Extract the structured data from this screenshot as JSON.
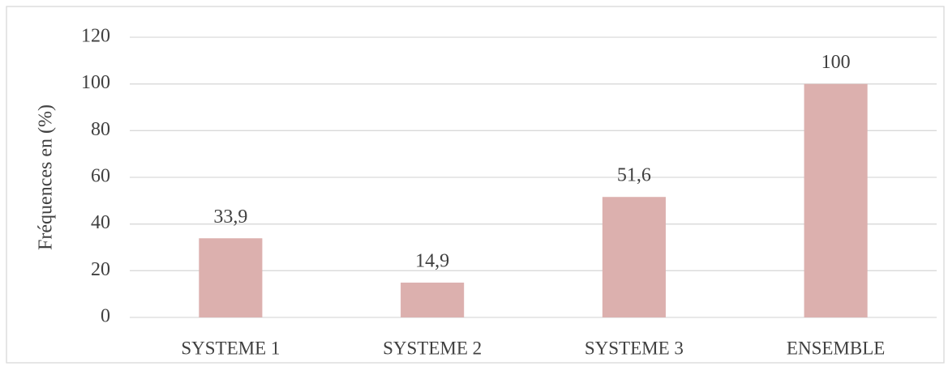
{
  "chart_data": {
    "type": "bar",
    "y_label": "Fréquences en (%)",
    "categories": [
      "SYSTEME 1",
      "SYSTEME 2",
      "SYSTEME 3",
      "ENSEMBLE"
    ],
    "values": [
      33.9,
      14.9,
      51.6,
      100
    ],
    "value_labels": [
      "33,9",
      "14,9",
      "51,6",
      "100"
    ],
    "color": "#dcb0ae",
    "ylim": [
      0,
      120
    ],
    "yticks": [
      0,
      20,
      40,
      60,
      80,
      100,
      120
    ],
    "grid": true
  }
}
